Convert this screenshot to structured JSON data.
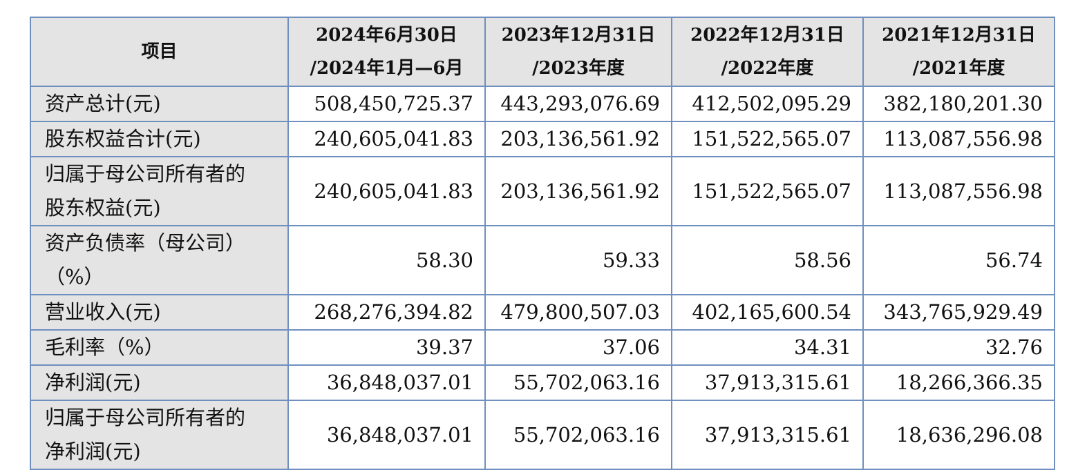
{
  "table": {
    "headers": [
      [
        "项目"
      ],
      [
        "2024年6月30日",
        "/2024年1月—6月"
      ],
      [
        "2023年12月31日",
        "/2023年度"
      ],
      [
        "2022年12月31日",
        "/2022年度"
      ],
      [
        "2021年12月31日",
        "/2021年度"
      ]
    ],
    "rows": [
      {
        "label": [
          "资产总计(元)"
        ],
        "values": [
          "508,450,725.37",
          "443,293,076.69",
          "412,502,095.29",
          "382,180,201.30"
        ]
      },
      {
        "label": [
          "股东权益合计(元)"
        ],
        "values": [
          "240,605,041.83",
          "203,136,561.92",
          "151,522,565.07",
          "113,087,556.98"
        ]
      },
      {
        "label": [
          "归属于母公司所有者的",
          "股东权益(元)"
        ],
        "values": [
          "240,605,041.83",
          "203,136,561.92",
          "151,522,565.07",
          "113,087,556.98"
        ]
      },
      {
        "label": [
          "资产负债率（母公司）",
          "（%）"
        ],
        "values": [
          "58.30",
          "59.33",
          "58.56",
          "56.74"
        ]
      },
      {
        "label": [
          "营业收入(元)"
        ],
        "values": [
          "268,276,394.82",
          "479,800,507.03",
          "402,165,600.54",
          "343,765,929.49"
        ]
      },
      {
        "label": [
          "毛利率（%）"
        ],
        "values": [
          "39.37",
          "37.06",
          "34.31",
          "32.76"
        ]
      },
      {
        "label": [
          "净利润(元)"
        ],
        "values": [
          "36,848,037.01",
          "55,702,063.16",
          "37,913,315.61",
          "18,266,366.35"
        ]
      },
      {
        "label": [
          "归属于母公司所有者的",
          "净利润(元)"
        ],
        "values": [
          "36,848,037.01",
          "55,702,063.16",
          "37,913,315.61",
          "18,636,296.08"
        ]
      }
    ]
  }
}
